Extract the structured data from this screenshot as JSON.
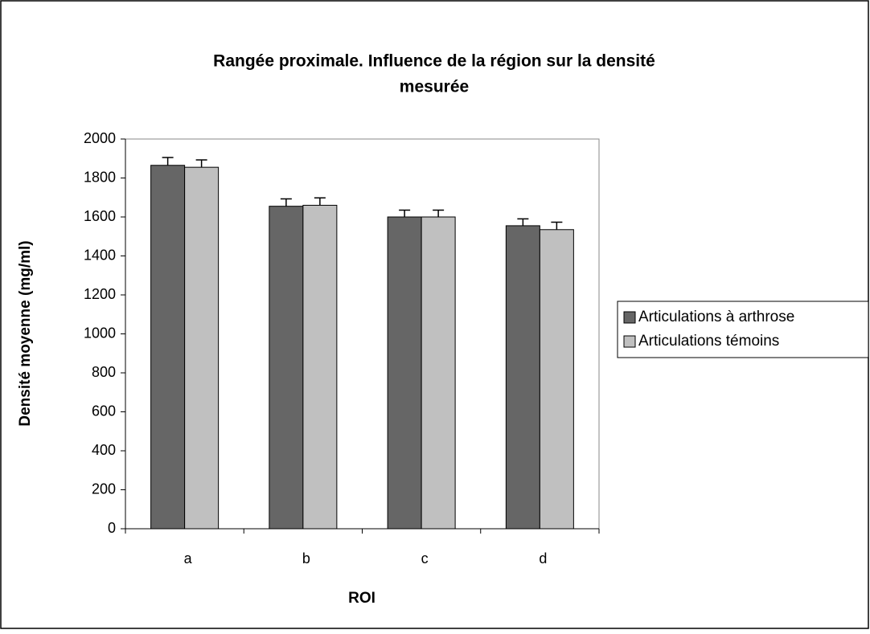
{
  "chart_data": {
    "type": "bar",
    "title": "Rangée proximale. Influence de la région sur la densité",
    "title_line2": "mesurée",
    "x_label": "ROI",
    "y_label": "Densité moyenne (mg/ml)",
    "categories": [
      "a",
      "b",
      "c",
      "d"
    ],
    "series": [
      {
        "name": "Articulations à arthrose",
        "color": "#666666",
        "values": [
          1865,
          1655,
          1600,
          1555
        ],
        "errors": [
          40,
          38,
          35,
          35
        ]
      },
      {
        "name": "Articulations témoins",
        "color": "#c0c0c0",
        "values": [
          1855,
          1660,
          1600,
          1535
        ],
        "errors": [
          38,
          38,
          35,
          38
        ]
      }
    ],
    "ylim": [
      0,
      2000
    ],
    "yticks": [
      0,
      200,
      400,
      600,
      800,
      1000,
      1200,
      1400,
      1600,
      1800,
      2000
    ],
    "grid": false,
    "legend": "right"
  }
}
